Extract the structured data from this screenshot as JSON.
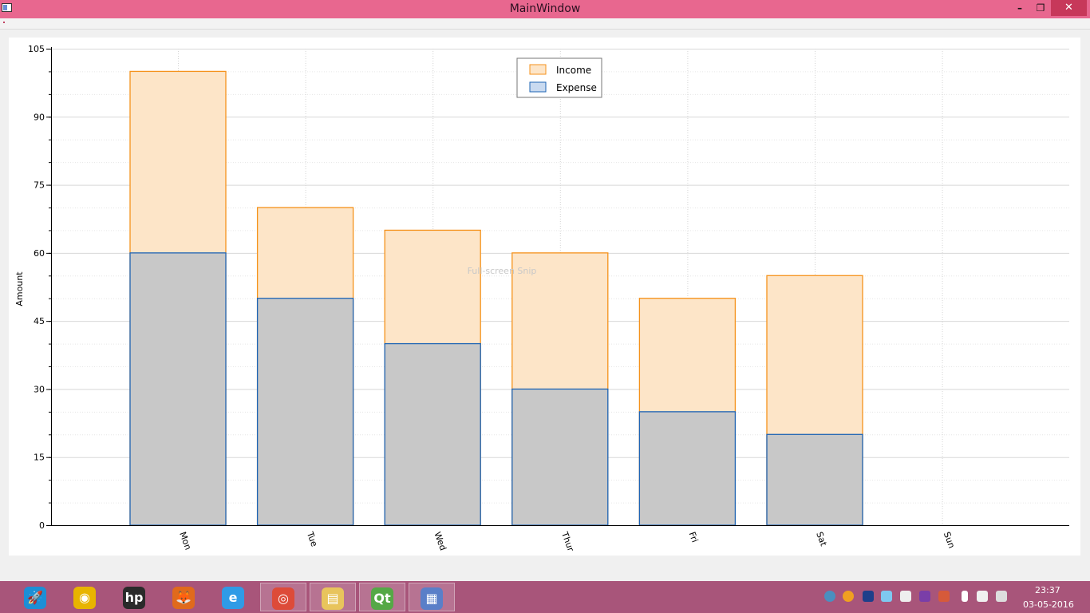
{
  "window": {
    "title": "MainWindow",
    "min_glyph": "–",
    "restore_glyph": "❐",
    "close_glyph": "✕"
  },
  "colors": {
    "titlebar": "#e8678f",
    "taskbar": "#a8557a",
    "income_fill": "#fde5c8",
    "income_stroke": "#f5921b",
    "expense_fill": "#c8c8c8",
    "expense_stroke": "#1e64b4",
    "expense_legend_fill": "#c9daf0"
  },
  "chart_data": {
    "type": "bar",
    "stacked": false,
    "overlapping": true,
    "categories": [
      "Mon",
      "Tue",
      "Wed",
      "Thur",
      "Fri",
      "Sat",
      "Sun"
    ],
    "series": [
      {
        "name": "Income",
        "values": [
          100,
          70,
          65,
          60,
          50,
          55,
          null
        ]
      },
      {
        "name": "Expense",
        "values": [
          60,
          50,
          40,
          30,
          25,
          20,
          null
        ]
      }
    ],
    "ylabel": "Amount",
    "xlabel": "",
    "ylim": [
      0,
      105
    ],
    "yticks": [
      0,
      15,
      30,
      45,
      60,
      75,
      90,
      105
    ],
    "y_minor_step": 5,
    "grid": true,
    "legend_position": "top-center",
    "x_tick_rotation": "rotated"
  },
  "overlay_text": "Full-screen Snip",
  "taskbar": {
    "apps": [
      {
        "icon": "rocket-icon",
        "glyph": "🚀",
        "color": "#1c8fd6"
      },
      {
        "icon": "media-player-icon",
        "glyph": "◉",
        "color": "#e8b400"
      },
      {
        "icon": "hp-icon",
        "glyph": "hp",
        "color": "#2a2a2a"
      },
      {
        "icon": "firefox-icon",
        "glyph": "🦊",
        "color": "#e06a1c"
      },
      {
        "icon": "internet-explorer-icon",
        "glyph": "e",
        "color": "#2f9be6"
      },
      {
        "icon": "chrome-icon",
        "glyph": "◎",
        "color": "#dd4b39"
      },
      {
        "icon": "file-explorer-icon",
        "glyph": "▤",
        "color": "#e8c45c"
      },
      {
        "icon": "qt-creator-icon",
        "glyph": "Qt",
        "color": "#55a846"
      },
      {
        "icon": "mainwindow-app-icon",
        "glyph": "▦",
        "color": "#5a7fc8"
      }
    ],
    "clock_time": "23:37",
    "clock_date": "03-05-2016"
  }
}
